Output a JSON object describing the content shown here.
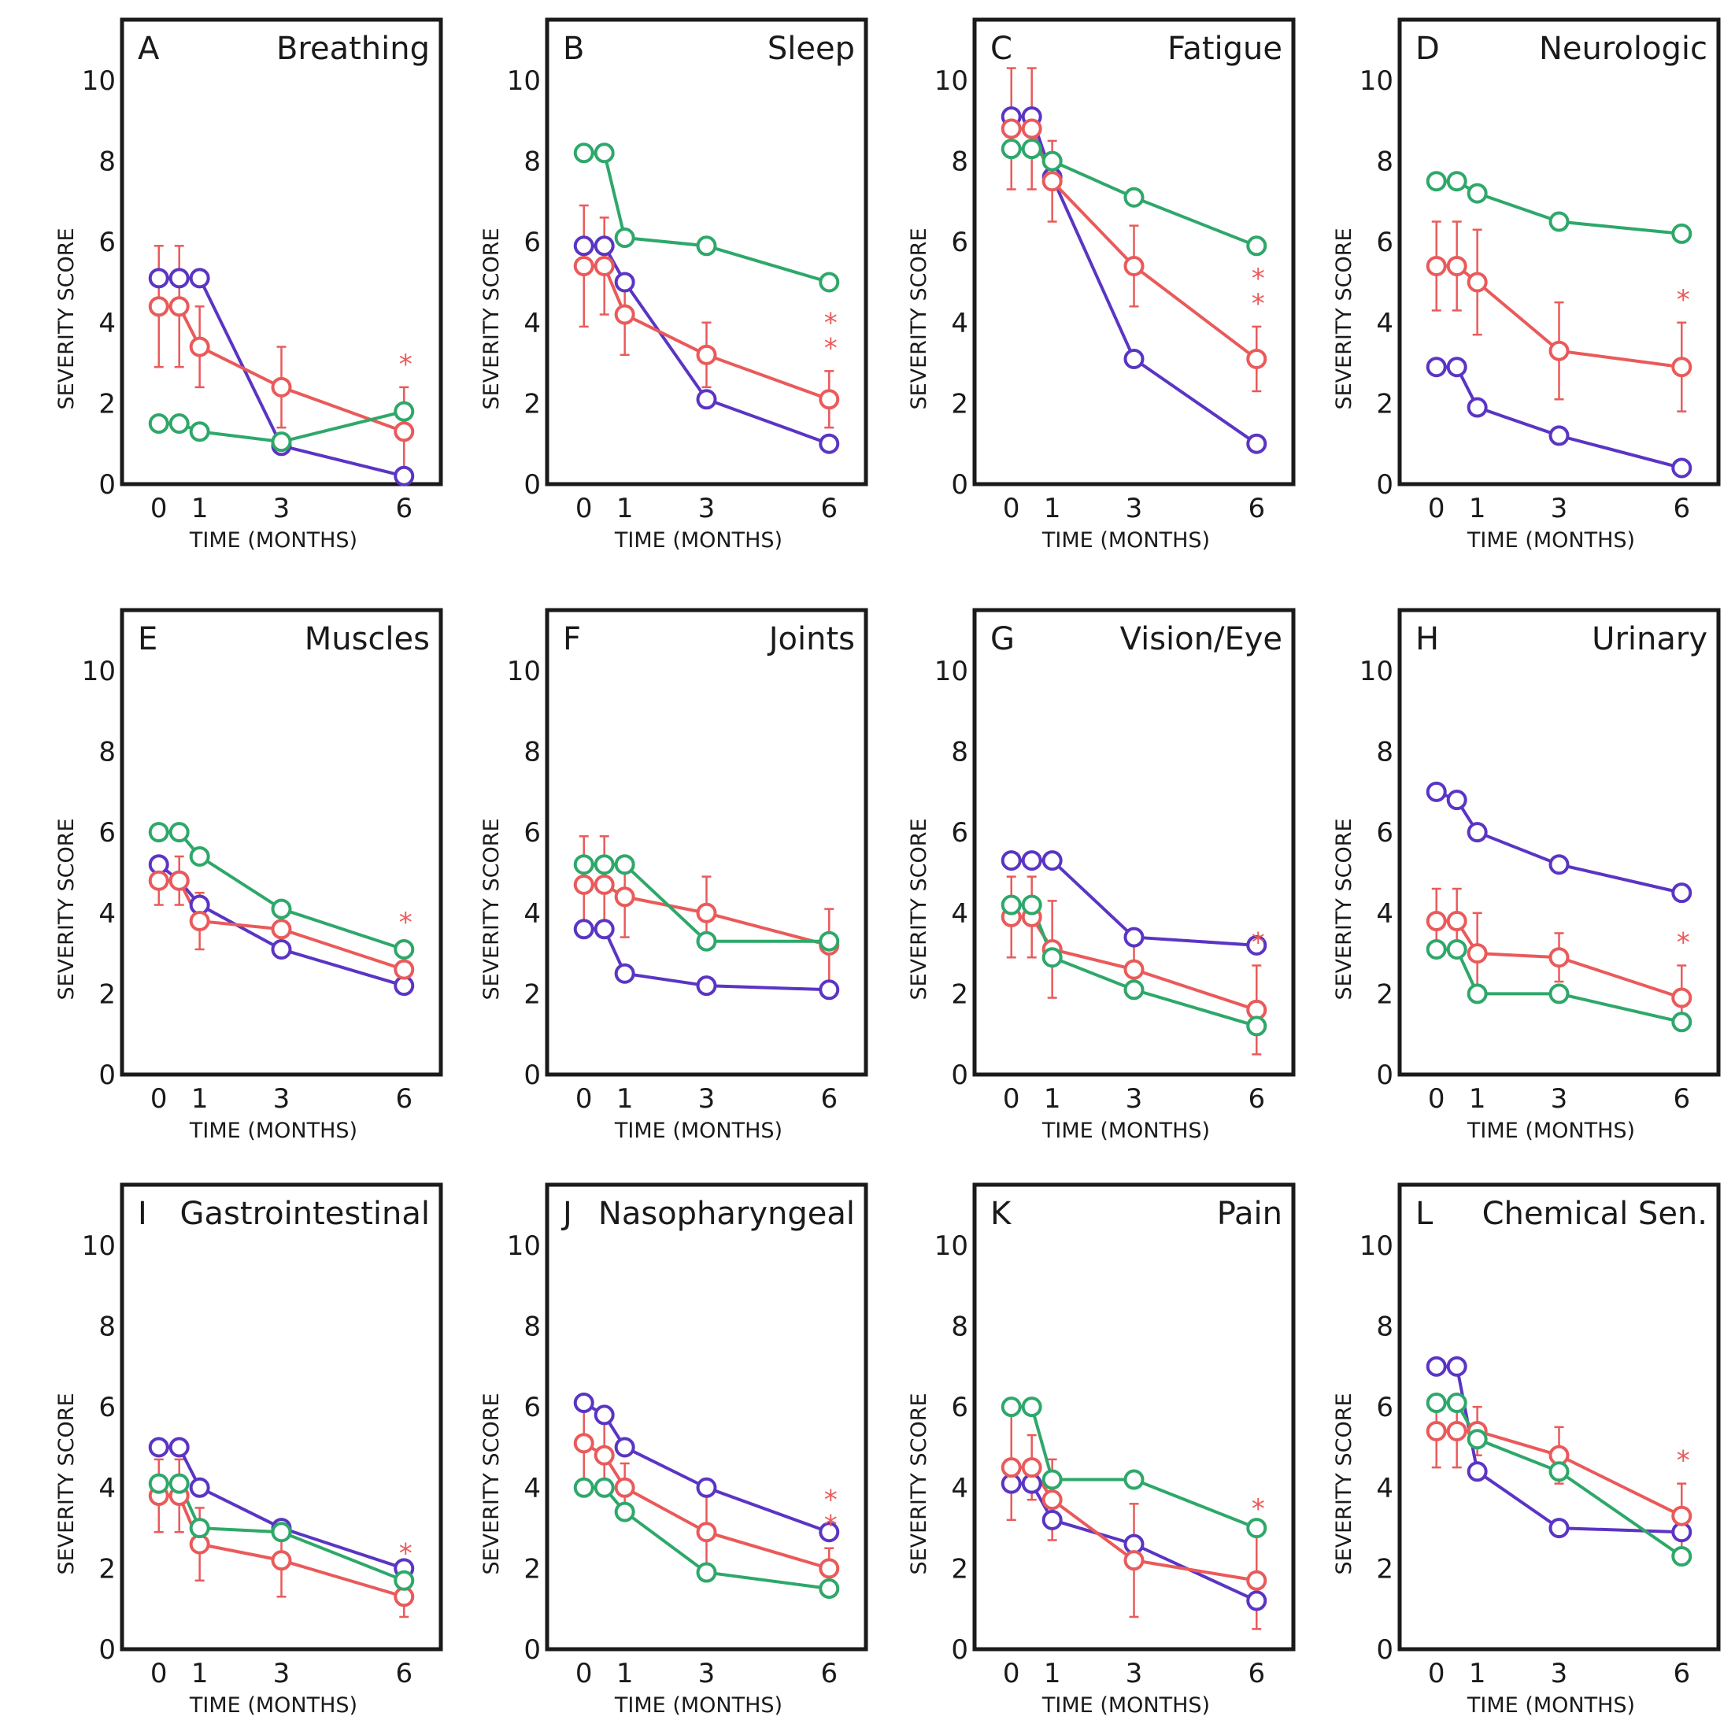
{
  "chart_data": [
    {
      "type": "line",
      "letter": "A",
      "title": "Breathing",
      "xlabel": "TIME (MONTHS)",
      "ylabel": "SEVERITY SCORE",
      "x": [
        0,
        0.5,
        1,
        3,
        6
      ],
      "xticks": [
        0,
        1,
        3,
        6
      ],
      "yticks": [
        0,
        2,
        4,
        6,
        8,
        10
      ],
      "ylim": [
        0,
        11.5
      ],
      "xlim": [
        -0.9,
        6.9
      ],
      "series": [
        {
          "name": "purple",
          "color": "#5a35c4",
          "values": [
            5.1,
            5.1,
            5.1,
            0.95,
            0.2
          ]
        },
        {
          "name": "red",
          "color": "#ea5a5a",
          "values": [
            4.4,
            4.4,
            3.4,
            2.4,
            1.3
          ],
          "err": [
            1.5,
            1.5,
            1.0,
            1.0,
            1.1
          ]
        },
        {
          "name": "green",
          "color": "#2ea86a",
          "values": [
            1.5,
            1.5,
            1.3,
            1.05,
            1.8
          ]
        }
      ],
      "stars": [
        "*"
      ]
    },
    {
      "type": "line",
      "letter": "B",
      "title": "Sleep",
      "xlabel": "TIME (MONTHS)",
      "ylabel": "SEVERITY SCORE",
      "x": [
        0,
        0.5,
        1,
        3,
        6
      ],
      "xticks": [
        0,
        1,
        3,
        6
      ],
      "yticks": [
        0,
        2,
        4,
        6,
        8,
        10
      ],
      "ylim": [
        0,
        11.5
      ],
      "xlim": [
        -0.9,
        6.9
      ],
      "series": [
        {
          "name": "purple",
          "color": "#5a35c4",
          "values": [
            5.9,
            5.9,
            5.0,
            2.1,
            1.0
          ]
        },
        {
          "name": "red",
          "color": "#ea5a5a",
          "values": [
            5.4,
            5.4,
            4.2,
            3.2,
            2.1
          ],
          "err": [
            1.5,
            1.2,
            1.0,
            0.8,
            0.7
          ]
        },
        {
          "name": "green",
          "color": "#2ea86a",
          "values": [
            8.2,
            8.2,
            6.1,
            5.9,
            5.0
          ]
        }
      ],
      "stars": [
        "*",
        "*"
      ]
    },
    {
      "type": "line",
      "letter": "C",
      "title": "Fatigue",
      "xlabel": "TIME (MONTHS)",
      "ylabel": "SEVERITY SCORE",
      "x": [
        0,
        0.5,
        1,
        3,
        6
      ],
      "xticks": [
        0,
        1,
        3,
        6
      ],
      "yticks": [
        0,
        2,
        4,
        6,
        8,
        10
      ],
      "ylim": [
        0,
        11.5
      ],
      "xlim": [
        -0.9,
        6.9
      ],
      "series": [
        {
          "name": "purple",
          "color": "#5a35c4",
          "values": [
            9.1,
            9.1,
            7.6,
            3.1,
            1.0
          ]
        },
        {
          "name": "red",
          "color": "#ea5a5a",
          "values": [
            8.8,
            8.8,
            7.5,
            5.4,
            3.1
          ],
          "err": [
            1.5,
            1.5,
            1.0,
            1.0,
            0.8
          ]
        },
        {
          "name": "green",
          "color": "#2ea86a",
          "values": [
            8.3,
            8.3,
            8.0,
            7.1,
            5.9
          ]
        }
      ],
      "stars": [
        "*",
        "*"
      ]
    },
    {
      "type": "line",
      "letter": "D",
      "title": "Neurologic",
      "xlabel": "TIME (MONTHS)",
      "ylabel": "SEVERITY SCORE",
      "x": [
        0,
        0.5,
        1,
        3,
        6
      ],
      "xticks": [
        0,
        1,
        3,
        6
      ],
      "yticks": [
        0,
        2,
        4,
        6,
        8,
        10
      ],
      "ylim": [
        0,
        11.5
      ],
      "xlim": [
        -0.9,
        6.9
      ],
      "series": [
        {
          "name": "purple",
          "color": "#5a35c4",
          "values": [
            2.9,
            2.9,
            1.9,
            1.2,
            0.4
          ]
        },
        {
          "name": "red",
          "color": "#ea5a5a",
          "values": [
            5.4,
            5.4,
            5.0,
            3.3,
            2.9
          ],
          "err": [
            1.1,
            1.1,
            1.3,
            1.2,
            1.1
          ]
        },
        {
          "name": "green",
          "color": "#2ea86a",
          "values": [
            7.5,
            7.5,
            7.2,
            6.5,
            6.2
          ]
        }
      ],
      "stars": [
        "*"
      ]
    },
    {
      "type": "line",
      "letter": "E",
      "title": "Muscles",
      "xlabel": "TIME (MONTHS)",
      "ylabel": "SEVERITY SCORE",
      "x": [
        0,
        0.5,
        1,
        3,
        6
      ],
      "xticks": [
        0,
        1,
        3,
        6
      ],
      "yticks": [
        0,
        2,
        4,
        6,
        8,
        10
      ],
      "ylim": [
        0,
        11.5
      ],
      "xlim": [
        -0.9,
        6.9
      ],
      "series": [
        {
          "name": "purple",
          "color": "#5a35c4",
          "values": [
            5.2,
            4.8,
            4.2,
            3.1,
            2.2
          ]
        },
        {
          "name": "red",
          "color": "#ea5a5a",
          "values": [
            4.8,
            4.8,
            3.8,
            3.6,
            2.6
          ],
          "err": [
            0.6,
            0.6,
            0.7,
            0.5,
            0.6
          ]
        },
        {
          "name": "green",
          "color": "#2ea86a",
          "values": [
            6.0,
            6.0,
            5.4,
            4.1,
            3.1
          ]
        }
      ],
      "stars": [
        "*"
      ]
    },
    {
      "type": "line",
      "letter": "F",
      "title": "Joints",
      "xlabel": "TIME (MONTHS)",
      "ylabel": "SEVERITY SCORE",
      "x": [
        0,
        0.5,
        1,
        3,
        6
      ],
      "xticks": [
        0,
        1,
        3,
        6
      ],
      "yticks": [
        0,
        2,
        4,
        6,
        8,
        10
      ],
      "ylim": [
        0,
        11.5
      ],
      "xlim": [
        -0.9,
        6.9
      ],
      "series": [
        {
          "name": "purple",
          "color": "#5a35c4",
          "values": [
            3.6,
            3.6,
            2.5,
            2.2,
            2.1
          ]
        },
        {
          "name": "red",
          "color": "#ea5a5a",
          "values": [
            4.7,
            4.7,
            4.4,
            4.0,
            3.2
          ],
          "err": [
            1.2,
            1.2,
            1.0,
            0.9,
            0.9
          ]
        },
        {
          "name": "green",
          "color": "#2ea86a",
          "values": [
            5.2,
            5.2,
            5.2,
            3.3,
            3.3
          ]
        }
      ],
      "stars": []
    },
    {
      "type": "line",
      "letter": "G",
      "title": "Vision/Eye",
      "xlabel": "TIME (MONTHS)",
      "ylabel": "SEVERITY SCORE",
      "x": [
        0,
        0.5,
        1,
        3,
        6
      ],
      "xticks": [
        0,
        1,
        3,
        6
      ],
      "yticks": [
        0,
        2,
        4,
        6,
        8,
        10
      ],
      "ylim": [
        0,
        11.5
      ],
      "xlim": [
        -0.9,
        6.9
      ],
      "series": [
        {
          "name": "purple",
          "color": "#5a35c4",
          "values": [
            5.3,
            5.3,
            5.3,
            3.4,
            3.2
          ]
        },
        {
          "name": "red",
          "color": "#ea5a5a",
          "values": [
            3.9,
            3.9,
            3.1,
            2.6,
            1.6
          ],
          "err": [
            1.0,
            1.0,
            1.2,
            0.7,
            1.1
          ]
        },
        {
          "name": "green",
          "color": "#2ea86a",
          "values": [
            4.2,
            4.2,
            2.9,
            2.1,
            1.2
          ]
        }
      ],
      "stars": [
        "*"
      ]
    },
    {
      "type": "line",
      "letter": "H",
      "title": "Urinary",
      "xlabel": "TIME (MONTHS)",
      "ylabel": "SEVERITY SCORE",
      "x": [
        0,
        0.5,
        1,
        3,
        6
      ],
      "xticks": [
        0,
        1,
        3,
        6
      ],
      "yticks": [
        0,
        2,
        4,
        6,
        8,
        10
      ],
      "ylim": [
        0,
        11.5
      ],
      "xlim": [
        -0.9,
        6.9
      ],
      "series": [
        {
          "name": "purple",
          "color": "#5a35c4",
          "values": [
            7.0,
            6.8,
            6.0,
            5.2,
            4.5
          ]
        },
        {
          "name": "red",
          "color": "#ea5a5a",
          "values": [
            3.8,
            3.8,
            3.0,
            2.9,
            1.9
          ],
          "err": [
            0.8,
            0.8,
            1.0,
            0.6,
            0.8
          ]
        },
        {
          "name": "green",
          "color": "#2ea86a",
          "values": [
            3.1,
            3.1,
            2.0,
            2.0,
            1.3
          ]
        }
      ],
      "stars": [
        "*"
      ]
    },
    {
      "type": "line",
      "letter": "I",
      "title": "Gastrointestinal",
      "xlabel": "TIME (MONTHS)",
      "ylabel": "SEVERITY SCORE",
      "x": [
        0,
        0.5,
        1,
        3,
        6
      ],
      "xticks": [
        0,
        1,
        3,
        6
      ],
      "yticks": [
        0,
        2,
        4,
        6,
        8,
        10
      ],
      "ylim": [
        0,
        11.5
      ],
      "xlim": [
        -0.9,
        6.9
      ],
      "series": [
        {
          "name": "purple",
          "color": "#5a35c4",
          "values": [
            5.0,
            5.0,
            4.0,
            3.0,
            2.0
          ]
        },
        {
          "name": "red",
          "color": "#ea5a5a",
          "values": [
            3.8,
            3.8,
            2.6,
            2.2,
            1.3
          ],
          "err": [
            0.9,
            0.9,
            0.9,
            0.9,
            0.5
          ]
        },
        {
          "name": "green",
          "color": "#2ea86a",
          "values": [
            4.1,
            4.1,
            3.0,
            2.9,
            1.7
          ]
        }
      ],
      "stars": [
        "*"
      ]
    },
    {
      "type": "line",
      "letter": "J",
      "title": "Nasopharyngeal",
      "xlabel": "TIME (MONTHS)",
      "ylabel": "SEVERITY SCORE",
      "x": [
        0,
        0.5,
        1,
        3,
        6
      ],
      "xticks": [
        0,
        1,
        3,
        6
      ],
      "yticks": [
        0,
        2,
        4,
        6,
        8,
        10
      ],
      "ylim": [
        0,
        11.5
      ],
      "xlim": [
        -0.9,
        6.9
      ],
      "series": [
        {
          "name": "purple",
          "color": "#5a35c4",
          "values": [
            6.1,
            5.8,
            5.0,
            4.0,
            2.9
          ]
        },
        {
          "name": "red",
          "color": "#ea5a5a",
          "values": [
            5.1,
            4.8,
            4.0,
            2.9,
            2.0
          ],
          "err": [
            0.9,
            0.9,
            0.6,
            0.9,
            0.5
          ]
        },
        {
          "name": "green",
          "color": "#2ea86a",
          "values": [
            4.0,
            4.0,
            3.4,
            1.9,
            1.5
          ]
        }
      ],
      "stars": [
        "*",
        "*"
      ]
    },
    {
      "type": "line",
      "letter": "K",
      "title": "Pain",
      "xlabel": "TIME (MONTHS)",
      "ylabel": "SEVERITY SCORE",
      "x": [
        0,
        0.5,
        1,
        3,
        6
      ],
      "xticks": [
        0,
        1,
        3,
        6
      ],
      "yticks": [
        0,
        2,
        4,
        6,
        8,
        10
      ],
      "ylim": [
        0,
        11.5
      ],
      "xlim": [
        -0.9,
        6.9
      ],
      "series": [
        {
          "name": "purple",
          "color": "#5a35c4",
          "values": [
            4.1,
            4.1,
            3.2,
            2.6,
            1.2
          ]
        },
        {
          "name": "red",
          "color": "#ea5a5a",
          "values": [
            4.5,
            4.5,
            3.7,
            2.2,
            1.7
          ],
          "err": [
            1.3,
            0.8,
            1.0,
            1.4,
            1.2
          ]
        },
        {
          "name": "green",
          "color": "#2ea86a",
          "values": [
            6.0,
            6.0,
            4.2,
            4.2,
            3.0
          ]
        }
      ],
      "stars": [
        "*"
      ]
    },
    {
      "type": "line",
      "letter": "L",
      "title": "Chemical Sen.",
      "xlabel": "TIME (MONTHS)",
      "ylabel": "SEVERITY SCORE",
      "x": [
        0,
        0.5,
        1,
        3,
        6
      ],
      "xticks": [
        0,
        1,
        3,
        6
      ],
      "yticks": [
        0,
        2,
        4,
        6,
        8,
        10
      ],
      "ylim": [
        0,
        11.5
      ],
      "xlim": [
        -0.9,
        6.9
      ],
      "series": [
        {
          "name": "purple",
          "color": "#5a35c4",
          "values": [
            7.0,
            7.0,
            4.4,
            3.0,
            2.9
          ]
        },
        {
          "name": "red",
          "color": "#ea5a5a",
          "values": [
            5.4,
            5.4,
            5.4,
            4.8,
            3.3
          ],
          "err": [
            0.9,
            0.9,
            0.6,
            0.7,
            0.8
          ]
        },
        {
          "name": "green",
          "color": "#2ea86a",
          "values": [
            6.1,
            6.1,
            5.2,
            4.4,
            2.3
          ]
        }
      ],
      "stars": [
        "*"
      ]
    }
  ]
}
